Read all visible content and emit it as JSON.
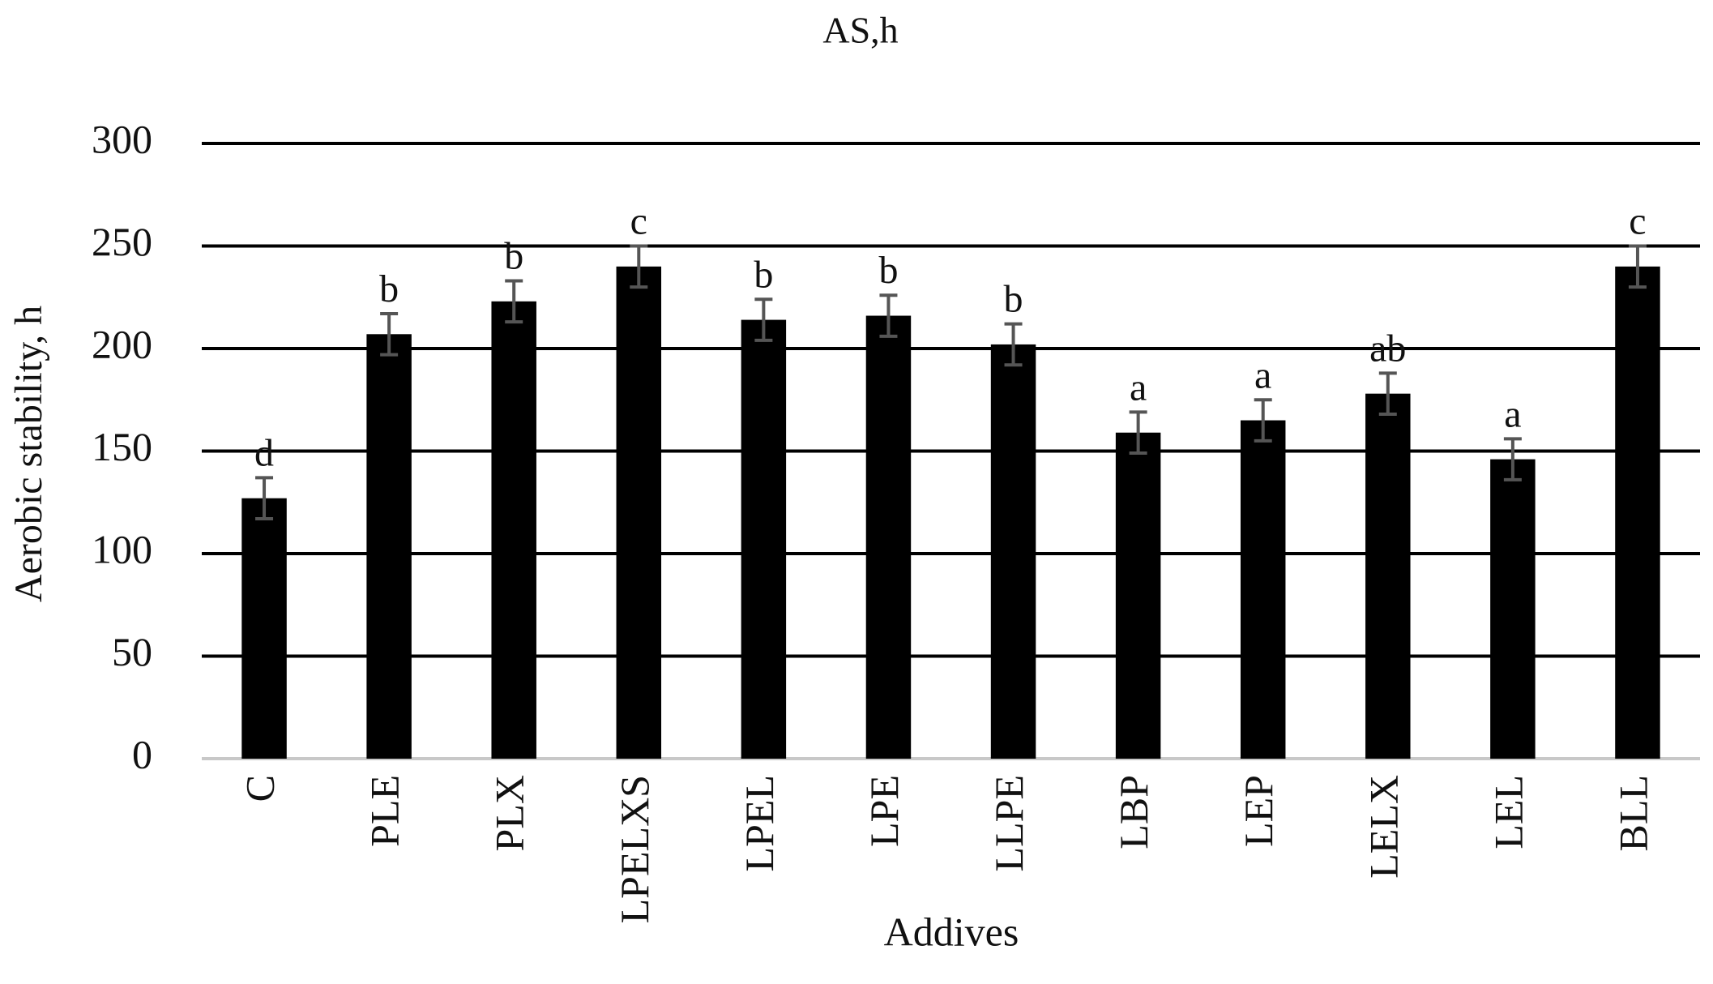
{
  "chart_data": {
    "type": "bar",
    "title": "AS,h",
    "x_label": "Addives",
    "y_label": "Aerobic stability, h",
    "categories": [
      "C",
      "PLE",
      "PLX",
      "LPELXS",
      "LPEL",
      "LPE",
      "LLPE",
      "LBP",
      "LEP",
      "LELX",
      "LEL",
      "BLL"
    ],
    "values": [
      127,
      207,
      223,
      240,
      214,
      216,
      202,
      159,
      165,
      178,
      146,
      240
    ],
    "errors": [
      10,
      10,
      10,
      10,
      10,
      10,
      10,
      10,
      10,
      10,
      10,
      10
    ],
    "letters": [
      "d",
      "b",
      "b",
      "c",
      "b",
      "b",
      "b",
      "a",
      "a",
      "ab",
      "a",
      "c"
    ],
    "color": "#000000",
    "error_color": "#555555",
    "ylim": [
      0,
      300
    ],
    "yticks": [
      0,
      50,
      100,
      150,
      200,
      250,
      300
    ],
    "grid": true
  }
}
